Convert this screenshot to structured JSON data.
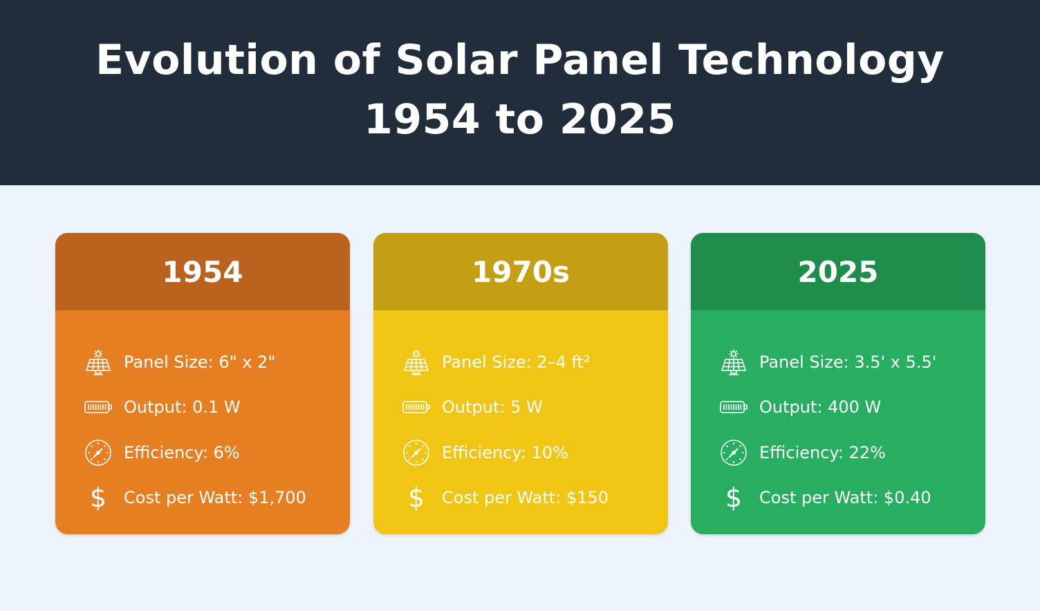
{
  "header": {
    "title_line1": "Evolution of Solar Panel Technology",
    "title_line2": "1954 to 2025",
    "background": "#222d3c"
  },
  "cards": [
    {
      "year": "1954",
      "colors": {
        "header": "#ba621e",
        "body": "#e67e22"
      },
      "rows": [
        {
          "icon": "solar-panel-icon",
          "text": "Panel Size: 6\" x 2\""
        },
        {
          "icon": "battery-icon",
          "text": "Output: 0.1 W"
        },
        {
          "icon": "gauge-icon",
          "text": "Efficiency: 6%"
        },
        {
          "icon": "dollar-icon",
          "text": "Cost per Watt: $1,700"
        }
      ]
    },
    {
      "year": "1970s",
      "colors": {
        "header": "#c49e14",
        "body": "#f0c514"
      },
      "rows": [
        {
          "icon": "solar-panel-icon",
          "text": "Panel Size: 2–4 ft²"
        },
        {
          "icon": "battery-icon",
          "text": "Output: 5 W"
        },
        {
          "icon": "gauge-icon",
          "text": "Efficiency: 10%"
        },
        {
          "icon": "dollar-icon",
          "text": "Cost per Watt: $150"
        }
      ]
    },
    {
      "year": "2025",
      "colors": {
        "header": "#1e8c4b",
        "body": "#27ae60"
      },
      "rows": [
        {
          "icon": "solar-panel-icon",
          "text": "Panel Size: 3.5' x 5.5'"
        },
        {
          "icon": "battery-icon",
          "text": "Output: 400 W"
        },
        {
          "icon": "gauge-icon",
          "text": "Efficiency: 22%"
        },
        {
          "icon": "dollar-icon",
          "text": "Cost per Watt: $0.40"
        }
      ]
    }
  ]
}
